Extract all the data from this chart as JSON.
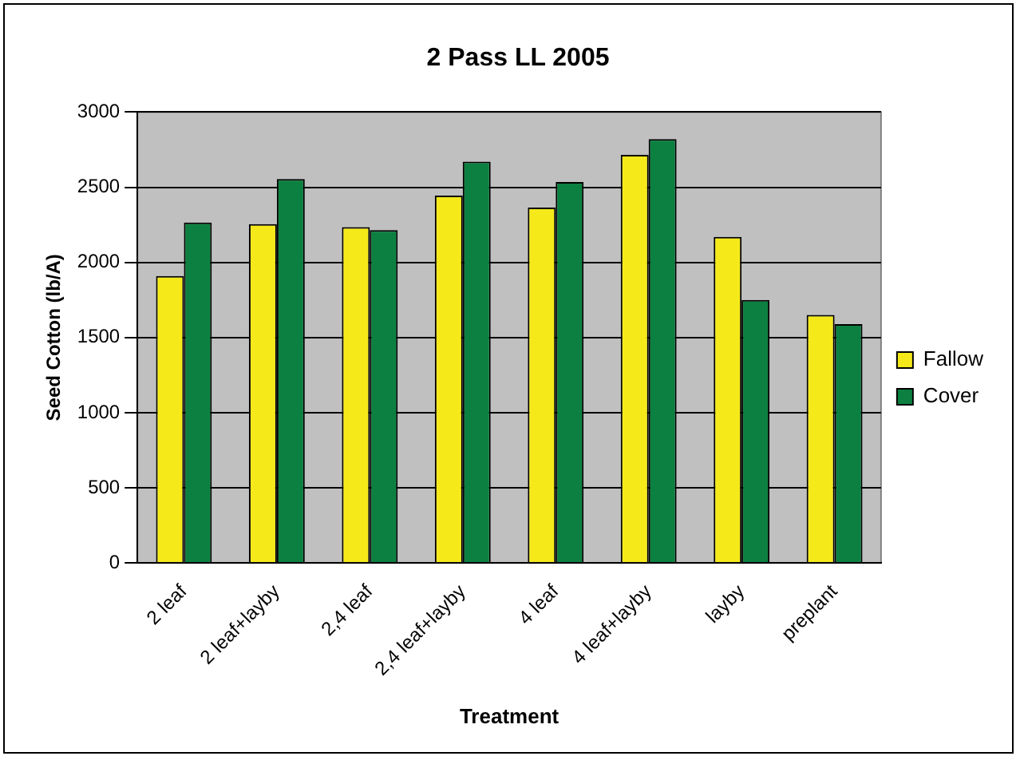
{
  "chart_data": {
    "type": "bar",
    "title": "2 Pass LL 2005",
    "xlabel": "Treatment",
    "ylabel": "Seed Cotton (lb/A)",
    "categories": [
      "2 leaf",
      "2 leaf+layby",
      "2,4 leaf",
      "2,4 leaf+layby",
      "4 leaf",
      "4 leaf+layby",
      "layby",
      "preplant"
    ],
    "series": [
      {
        "name": "Fallow",
        "color": "#f5e91a",
        "values": [
          1910,
          2255,
          2235,
          2445,
          2365,
          2715,
          2170,
          1650
        ]
      },
      {
        "name": "Cover",
        "color": "#0c8040",
        "values": [
          2265,
          2555,
          2215,
          2670,
          2535,
          2820,
          1750,
          1590
        ]
      }
    ],
    "ylim": [
      0,
      3000
    ],
    "yticks": [
      0,
      500,
      1000,
      1500,
      2000,
      2500,
      3000
    ],
    "grid": "y",
    "legend": "right"
  }
}
